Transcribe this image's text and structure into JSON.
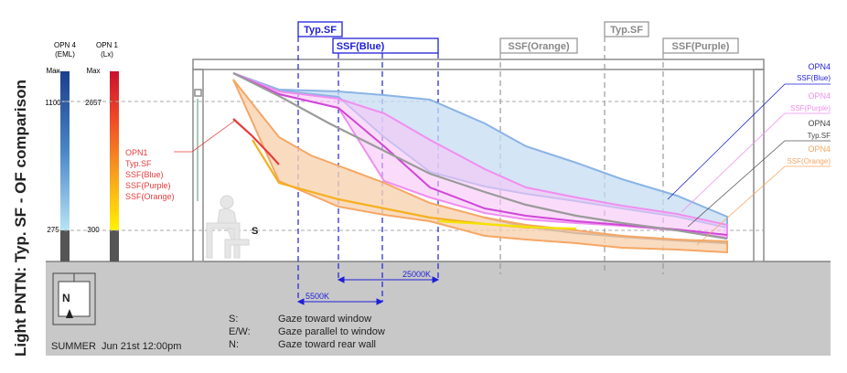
{
  "title": "Light PNTN: Typ. SF - OF comparison",
  "colors": {
    "ground": "#c8c8c8",
    "building_line": "#8c8c8c",
    "typsf_blue": "#1f1fd8",
    "opn4_blue": "#8ab4e4",
    "opn4_purple": "#f08ef0",
    "opn4_typsf": "#b0b0b0",
    "opn4_orange": "#f5a765",
    "opn1_red": "#e63c3c",
    "opn1_orange": "#f5b050"
  },
  "bars": {
    "eml": {
      "label_line1": "OPN 4",
      "label_line2": "(EML)",
      "max": "Max",
      "v_high": "1100",
      "v_low": "275"
    },
    "lux": {
      "label_line1": "OPN 1",
      "label_line2": "(Lx)",
      "max": "Max",
      "v_high": "2657",
      "v_low": "300"
    }
  },
  "zones": {
    "typsf_left": "Typ.SF",
    "ssf_blue": "SSF(Blue)",
    "ssf_orange": "SSF(Orange)",
    "typsf_right": "Typ.SF",
    "ssf_purple": "SSF(Purple)"
  },
  "opn1_legend": [
    "OPN1",
    "Typ.SF",
    "SSF(Blue)",
    "SSF(Purple)",
    "SSF(Orange)"
  ],
  "right_legend": {
    "blue": {
      "line1": "OPN4",
      "line2": "SSF(Blue)"
    },
    "purple": {
      "line1": "OPN4",
      "line2": "SSF(Purple)"
    },
    "typsf": {
      "line1": "OPN4",
      "line2": "Typ.SF"
    },
    "orange": {
      "line1": "OPN4",
      "line2": "SSF(Orange)"
    }
  },
  "cct": {
    "k5500": "5500K",
    "k25000": "25000K"
  },
  "occupant_label": "S",
  "compass": "N",
  "season": "SUMMER  Jun 21st 12:00pm",
  "gaze_notes": [
    {
      "key": "S:",
      "text": "Gaze toward window"
    },
    {
      "key": "E/W:",
      "text": "Gaze parallel to window"
    },
    {
      "key": "N:",
      "text": "Gaze toward rear wall"
    }
  ]
}
